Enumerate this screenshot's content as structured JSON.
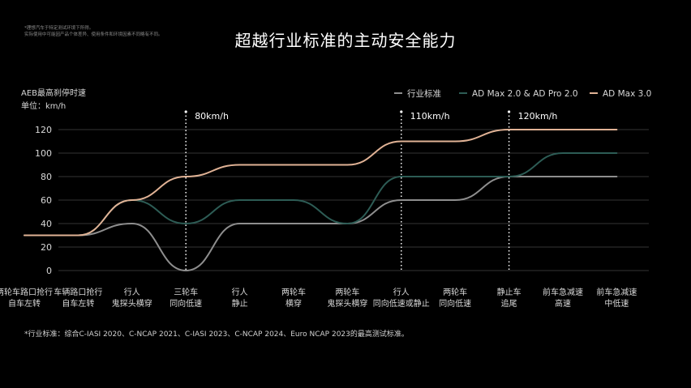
{
  "disclaimer": [
    "*理想汽车于特定测试环境下所得。",
    "实际使用中可能因产品个体差异、使用条件和环境因素不同略有不同。"
  ],
  "title": "超越行业标准的主动安全能力",
  "ylabel_line1": "AEB最高刹停时速",
  "ylabel_line2": "单位：km/h",
  "footnote": "*行业标准：综合C-IASI 2020、C-NCAP 2021、C-IASI 2023、C-NCAP 2024、Euro NCAP 2023的最高测试标准。",
  "colors": {
    "grid": "#333333",
    "industry": "#8e8e8e",
    "admax2": "#2d5c55",
    "admax3": "#e0b295",
    "text": "#d8d8d8"
  },
  "chart_data": {
    "type": "line",
    "ylim": [
      0,
      120
    ],
    "yticks": [
      0,
      20,
      40,
      60,
      80,
      100,
      120
    ],
    "categories": [
      [
        "两轮车路口抢行",
        "自车左转"
      ],
      [
        "车辆路口抢行",
        "自车左转"
      ],
      [
        "行人",
        "鬼探头横穿"
      ],
      [
        "三轮车",
        "同向低速"
      ],
      [
        "行人",
        "静止"
      ],
      [
        "两轮车",
        "横穿"
      ],
      [
        "两轮车",
        "鬼探头横穿"
      ],
      [
        "行人",
        "同向低速或静止"
      ],
      [
        "两轮车",
        "同向低速"
      ],
      [
        "静止车",
        "追尾"
      ],
      [
        "前车急减速",
        "高速"
      ],
      [
        "前车急减速",
        "中低速"
      ]
    ],
    "series": [
      {
        "name": "行业标准",
        "color": "#8e8e8e",
        "values": [
          30,
          30,
          40,
          0,
          40,
          40,
          40,
          60,
          60,
          80,
          80,
          80
        ]
      },
      {
        "name": "AD Max 2.0 & AD Pro 2.0",
        "color": "#2d5c55",
        "values": [
          30,
          30,
          60,
          40,
          60,
          60,
          40,
          80,
          80,
          80,
          100,
          100
        ]
      },
      {
        "name": "AD Max 3.0",
        "color": "#e0b295",
        "values": [
          30,
          30,
          60,
          80,
          90,
          90,
          90,
          110,
          110,
          120,
          120,
          120
        ]
      }
    ],
    "annotations": [
      {
        "category_index": 3,
        "text": "80km/h"
      },
      {
        "category_index": 7,
        "text": "110km/h"
      },
      {
        "category_index": 9,
        "text": "120km/h"
      }
    ],
    "legend_position": "top-right",
    "grid": true
  }
}
